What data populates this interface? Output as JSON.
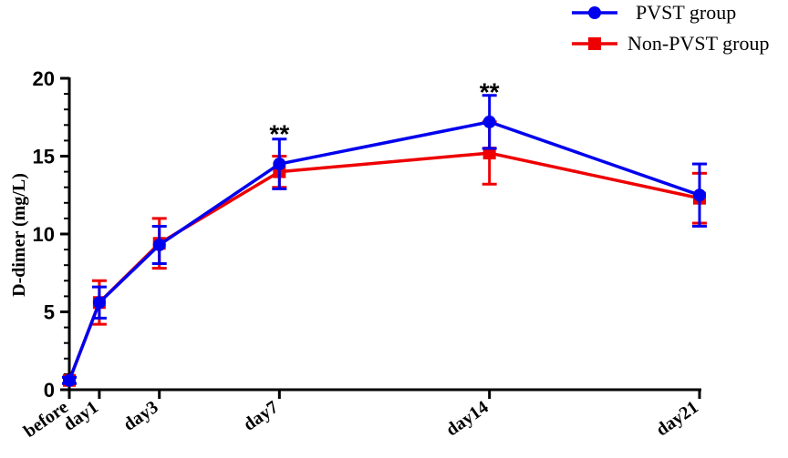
{
  "chart_data": {
    "type": "line",
    "title": "",
    "xlabel": "",
    "ylabel": "D-dimer (mg/L)",
    "ylim": [
      0,
      20
    ],
    "yticks": [
      0,
      5,
      10,
      15,
      20
    ],
    "x_days": [
      0,
      1,
      3,
      7,
      14,
      21
    ],
    "categories": [
      "before",
      "day1",
      "day3",
      "day7",
      "day14",
      "day21"
    ],
    "series": [
      {
        "name": "PVST group",
        "color": "#0000ee",
        "marker": "circle",
        "values": [
          0.6,
          5.6,
          9.3,
          14.5,
          17.2,
          12.5
        ],
        "error": [
          0.2,
          1.0,
          1.2,
          1.6,
          1.7,
          2.0
        ]
      },
      {
        "name": "Non-PVST group",
        "color": "#ee0000",
        "marker": "square",
        "values": [
          0.6,
          5.6,
          9.4,
          14.0,
          15.2,
          12.3
        ],
        "error": [
          0.2,
          1.4,
          1.6,
          1.0,
          2.0,
          1.6
        ]
      }
    ],
    "annotations": [
      {
        "category": "day7",
        "text": "**",
        "y": 16.7
      },
      {
        "category": "day14",
        "text": "**",
        "y": 19.4
      }
    ],
    "legend_position": "top-right",
    "grid": false
  }
}
